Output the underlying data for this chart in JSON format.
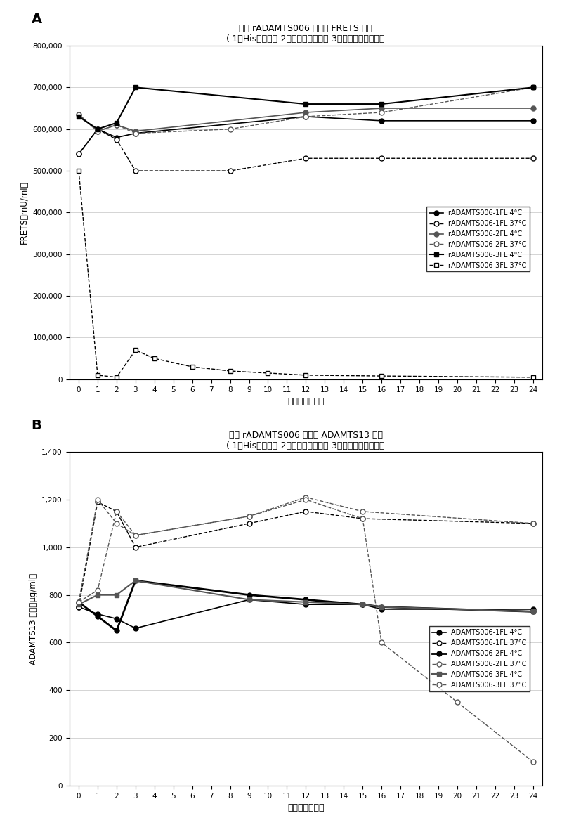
{
  "panel_A": {
    "title_line1": "液体 rADAMTS006 制剂的 FRETS 活性",
    "title_line2": "(-1：His缓冲液；-2：磷酸盐缓冲液；-3：柠樾酸盐缓冲液）",
    "ylabel": "FRETS（mU/ml）",
    "xlabel": "储存时间【周】",
    "ylim": [
      0,
      800000
    ],
    "yticks": [
      0,
      100000,
      200000,
      300000,
      400000,
      500000,
      600000,
      700000,
      800000
    ],
    "series": {
      "rADAMTS006-1FL 4°C": {
        "x": [
          0,
          1,
          2,
          3,
          12,
          16,
          24
        ],
        "y": [
          540000,
          600000,
          580000,
          590000,
          630000,
          620000,
          620000
        ],
        "color": "#000000",
        "marker": "o",
        "fillstyle": "full",
        "linestyle": "-",
        "linewidth": 1.2
      },
      "rADAMTS006-1FL 37°C": {
        "x": [
          0,
          1,
          2,
          3,
          8,
          12,
          16,
          24
        ],
        "y": [
          540000,
          600000,
          575000,
          500000,
          500000,
          530000,
          530000,
          530000
        ],
        "color": "#000000",
        "marker": "o",
        "fillstyle": "none",
        "linestyle": "--",
        "linewidth": 1.0
      },
      "rADAMTS006-2FL 4°C": {
        "x": [
          0,
          1,
          2,
          3,
          12,
          16,
          24
        ],
        "y": [
          635000,
          595000,
          610000,
          595000,
          640000,
          650000,
          650000
        ],
        "color": "#555555",
        "marker": "o",
        "fillstyle": "full",
        "linestyle": "-",
        "linewidth": 1.2
      },
      "rADAMTS006-2FL 37°C": {
        "x": [
          0,
          1,
          2,
          3,
          8,
          12,
          16,
          24
        ],
        "y": [
          635000,
          595000,
          610000,
          590000,
          600000,
          630000,
          640000,
          700000
        ],
        "color": "#555555",
        "marker": "o",
        "fillstyle": "none",
        "linestyle": "--",
        "linewidth": 1.0
      },
      "rADAMTS006-3FL 4°C": {
        "x": [
          0,
          1,
          2,
          3,
          12,
          16,
          24
        ],
        "y": [
          630000,
          600000,
          615000,
          700000,
          660000,
          660000,
          700000
        ],
        "color": "#000000",
        "marker": "s",
        "fillstyle": "full",
        "linestyle": "-",
        "linewidth": 1.5
      },
      "rADAMTS006-3FL 37°C": {
        "x": [
          0,
          1,
          2,
          3,
          4,
          6,
          8,
          10,
          12,
          16,
          24
        ],
        "y": [
          500000,
          10000,
          5000,
          70000,
          50000,
          30000,
          20000,
          15000,
          10000,
          8000,
          5000
        ],
        "color": "#000000",
        "marker": "s",
        "fillstyle": "none",
        "linestyle": "--",
        "linewidth": 1.0
      }
    }
  },
  "panel_B": {
    "title_line1": "液体 rADAMTS006 制剂的 ADAMTS13 抗原",
    "title_line2": "(-1：His缓冲液；-2：磷酸盐缓冲液；-3：柠樾酸盐缓冲液）",
    "ylabel": "ADAMTS13 抗原（μg/ml）",
    "xlabel": "储存时间【周】",
    "ylim": [
      0,
      1400
    ],
    "yticks": [
      0,
      200,
      400,
      600,
      800,
      1000,
      1200,
      1400
    ],
    "series": {
      "ADAMTS006-1FL 4°C": {
        "x": [
          0,
          1,
          2,
          3,
          9,
          12,
          15,
          16,
          24
        ],
        "y": [
          750,
          720,
          700,
          660,
          780,
          760,
          760,
          740,
          740
        ],
        "color": "#000000",
        "marker": "o",
        "fillstyle": "full",
        "linestyle": "-",
        "linewidth": 1.2
      },
      "ADAMTS006-1FL 37°C": {
        "x": [
          0,
          1,
          2,
          3,
          9,
          12,
          15,
          24
        ],
        "y": [
          750,
          1190,
          1150,
          1000,
          1100,
          1150,
          1120,
          1100
        ],
        "color": "#000000",
        "marker": "o",
        "fillstyle": "none",
        "linestyle": "--",
        "linewidth": 1.0
      },
      "ADAMTS006-2FL 4°C": {
        "x": [
          0,
          1,
          2,
          3,
          9,
          12,
          15,
          16,
          24
        ],
        "y": [
          770,
          710,
          650,
          860,
          800,
          780,
          760,
          750,
          730
        ],
        "color": "#000000",
        "marker": "o",
        "fillstyle": "full",
        "linestyle": "-",
        "linewidth": 2.0
      },
      "ADAMTS006-2FL 37°C": {
        "x": [
          0,
          1,
          2,
          3,
          9,
          12,
          15,
          24
        ],
        "y": [
          770,
          1200,
          1100,
          1050,
          1130,
          1210,
          1150,
          1100
        ],
        "color": "#555555",
        "marker": "o",
        "fillstyle": "none",
        "linestyle": "--",
        "linewidth": 1.0
      },
      "ADAMTS006-3FL 4°C": {
        "x": [
          0,
          1,
          2,
          3,
          9,
          12,
          15,
          16,
          24
        ],
        "y": [
          760,
          800,
          800,
          860,
          780,
          770,
          760,
          750,
          730
        ],
        "color": "#555555",
        "marker": "s",
        "fillstyle": "full",
        "linestyle": "-",
        "linewidth": 1.5
      },
      "ADAMTS006-3FL 37°C": {
        "x": [
          0,
          1,
          2,
          3,
          9,
          12,
          15,
          16,
          20,
          24
        ],
        "y": [
          770,
          820,
          1150,
          1050,
          1130,
          1200,
          1120,
          600,
          350,
          100
        ],
        "color": "#555555",
        "marker": "o",
        "fillstyle": "none",
        "linestyle": "--",
        "linewidth": 1.0
      }
    }
  },
  "xticks": [
    0,
    1,
    2,
    3,
    4,
    5,
    6,
    7,
    8,
    9,
    10,
    11,
    12,
    13,
    14,
    15,
    16,
    17,
    18,
    19,
    20,
    21,
    22,
    23,
    24
  ],
  "background_color": "#ffffff",
  "grid_color": "#aaaaaa"
}
